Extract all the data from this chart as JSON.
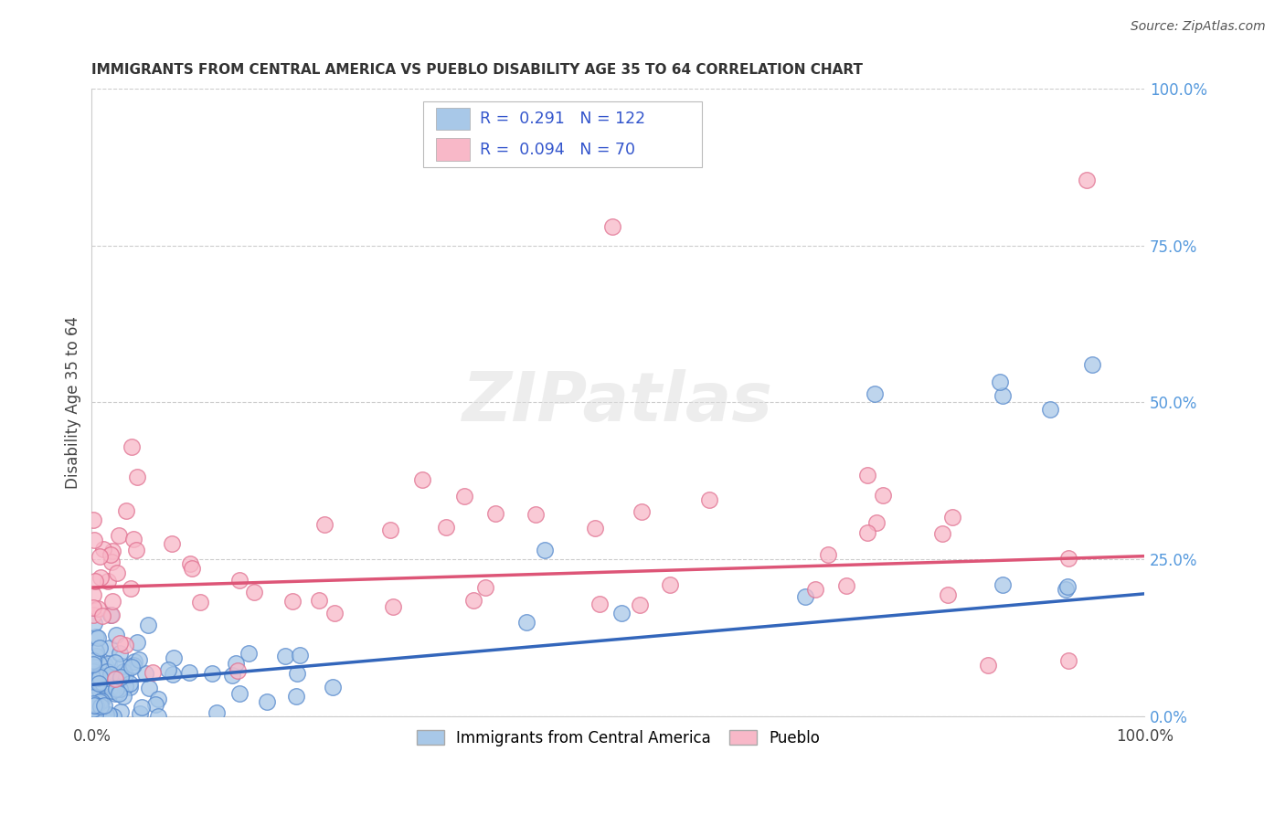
{
  "title": "IMMIGRANTS FROM CENTRAL AMERICA VS PUEBLO DISABILITY AGE 35 TO 64 CORRELATION CHART",
  "source": "Source: ZipAtlas.com",
  "ylabel": "Disability Age 35 to 64",
  "right_yticks": [
    "100.0%",
    "75.0%",
    "50.0%",
    "25.0%",
    "0.0%"
  ],
  "right_ytick_vals": [
    1.0,
    0.75,
    0.5,
    0.25,
    0.0
  ],
  "series1_label": "Immigrants from Central America",
  "series1_R": "0.291",
  "series1_N": "122",
  "series1_face": "#a8c8e8",
  "series1_edge": "#5588cc",
  "series1_line": "#3366bb",
  "series2_label": "Pueblo",
  "series2_R": "0.094",
  "series2_N": "70",
  "series2_face": "#f8b8c8",
  "series2_edge": "#e07090",
  "series2_line": "#dd5577",
  "legend_text_color": "#3355cc",
  "background_color": "#ffffff",
  "grid_color": "#cccccc",
  "blue_trend": [
    0.05,
    0.195
  ],
  "pink_trend": [
    0.205,
    0.255
  ]
}
